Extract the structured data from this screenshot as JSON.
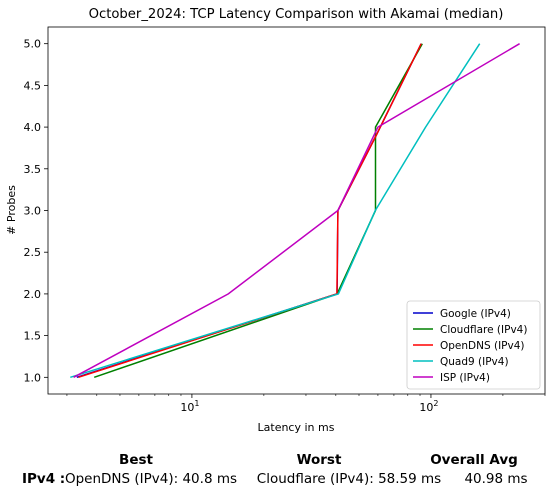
{
  "chart_data": {
    "type": "line",
    "title": "October_2024: TCP Latency Comparison with Akamai (median)",
    "xlabel": "Latency in ms",
    "ylabel": "# Probes",
    "xscale": "log",
    "xlim": [
      2.5,
      300
    ],
    "ylim": [
      0.8,
      5.2
    ],
    "x_ticks": [
      {
        "value": 10,
        "label": "10",
        "base": "10",
        "exp": "1"
      },
      {
        "value": 100,
        "label": "100",
        "base": "10",
        "exp": "2"
      }
    ],
    "y_ticks": [
      1.0,
      1.5,
      2.0,
      2.5,
      3.0,
      3.5,
      4.0,
      4.5,
      5.0
    ],
    "y_tick_labels": [
      "1.0",
      "1.5",
      "2.0",
      "2.5",
      "3.0",
      "3.5",
      "4.0",
      "4.5",
      "5.0"
    ],
    "legend_position": "bottom-right",
    "series": [
      {
        "name": "Google (IPv4)",
        "color": "#0000cc",
        "x": [
          3.3,
          40.5,
          40.8,
          59,
          91
        ],
        "y": [
          1,
          2,
          3,
          3.9,
          5
        ]
      },
      {
        "name": "Cloudflare (IPv4)",
        "color": "#008000",
        "x": [
          3.9,
          40.5,
          58.59,
          58.59,
          92
        ],
        "y": [
          1,
          2,
          3,
          4,
          5
        ]
      },
      {
        "name": "OpenDNS (IPv4)",
        "color": "#ff0000",
        "x": [
          3.35,
          40.4,
          40.8,
          59,
          91
        ],
        "y": [
          1,
          2,
          3,
          3.9,
          5
        ]
      },
      {
        "name": "Quad9 (IPv4)",
        "color": "#00bfbf",
        "x": [
          3.1,
          41,
          58.5,
          95,
          160
        ],
        "y": [
          1,
          2,
          3,
          4,
          5
        ]
      },
      {
        "name": "ISP (IPv4)",
        "color": "#bf00bf",
        "x": [
          3.2,
          14.2,
          40.8,
          60,
          235
        ],
        "y": [
          1,
          2,
          3,
          4,
          5
        ]
      }
    ]
  },
  "summary": {
    "best_header": "Best",
    "worst_header": "Worst",
    "avg_header": "Overall Avg",
    "row_label": "IPv4 :",
    "best_value": "OpenDNS (IPv4): 40.8 ms",
    "worst_value": "Cloudflare (IPv4): 58.59 ms",
    "avg_value": "40.98 ms"
  }
}
